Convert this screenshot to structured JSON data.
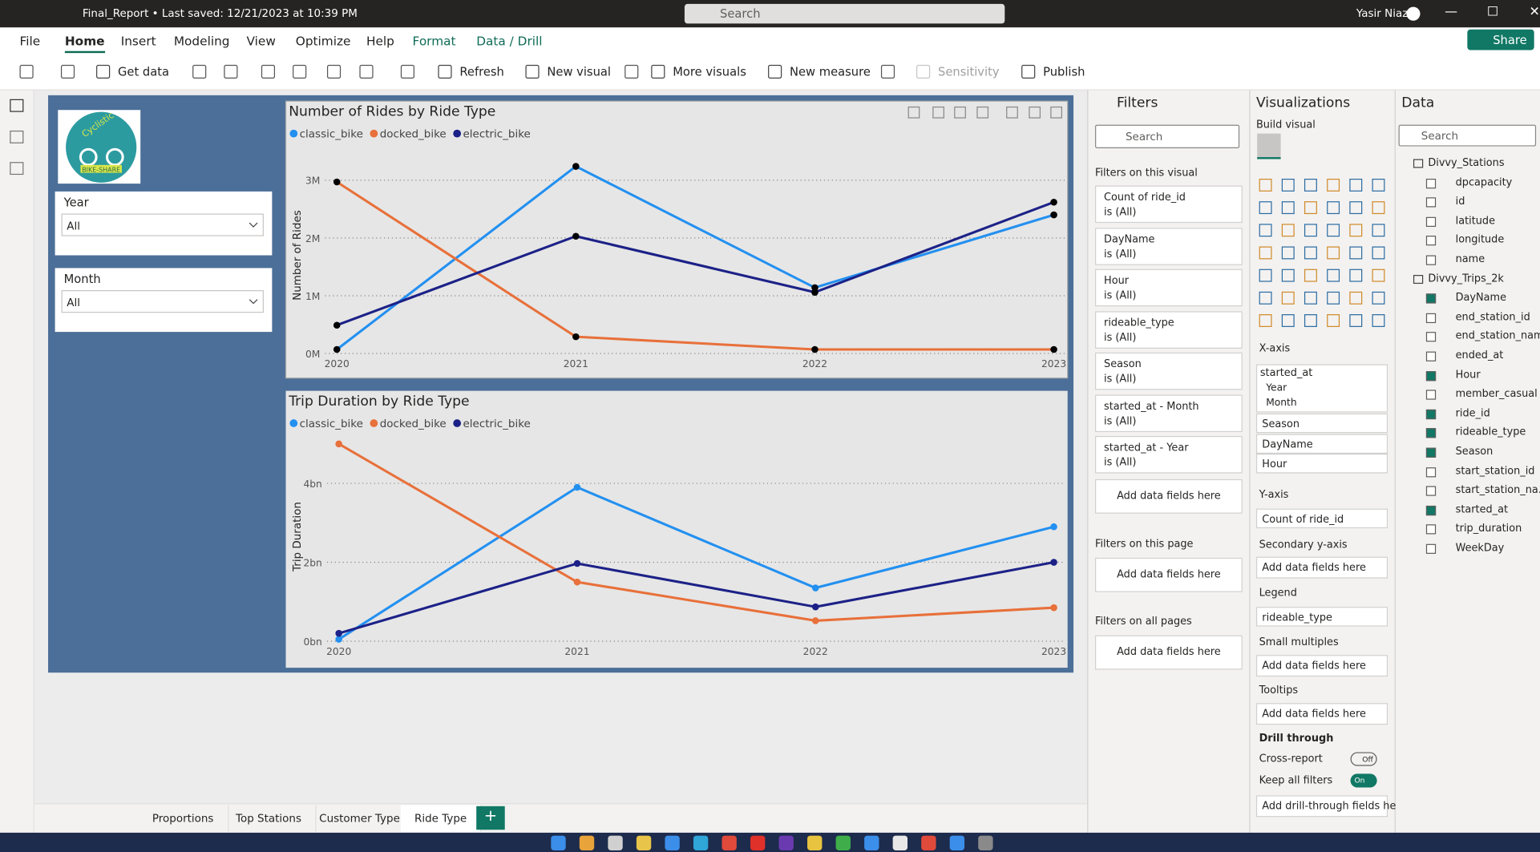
{
  "title_bar": {
    "file": "Final_Report • Last saved: 12/21/2023 at 10:39 PM",
    "search": "Search",
    "user": "Yasir Niaz"
  },
  "ribbon": {
    "tabs": [
      "File",
      "Home",
      "Insert",
      "Modeling",
      "View",
      "Optimize",
      "Help",
      "Format",
      "Data / Drill"
    ],
    "active_tab": 1,
    "share": "Share",
    "tools": [
      "Get data",
      "Refresh",
      "New visual",
      "More visuals",
      "New measure",
      "Sensitivity",
      "Publish"
    ]
  },
  "logo": {
    "name": "Cyclistic",
    "tag": "BIKE-SHARE"
  },
  "slicers": [
    {
      "title": "Year",
      "value": "All"
    },
    {
      "title": "Month",
      "value": "All"
    }
  ],
  "chart_data": [
    {
      "type": "line",
      "title": "Number of Rides by Ride Type",
      "y_label": "Number of Rides",
      "categories": [
        "2020",
        "2021",
        "2022",
        "2023"
      ],
      "series": [
        {
          "name": "classic_bike",
          "color": "#2390f0",
          "values": [
            70000,
            3240000,
            1140000,
            2400000
          ]
        },
        {
          "name": "docked_bike",
          "color": "#e8703a",
          "values": [
            2970000,
            290000,
            70000,
            70000
          ]
        },
        {
          "name": "electric_bike",
          "color": "#1c2187",
          "values": [
            490000,
            2030000,
            1060000,
            2620000
          ]
        }
      ],
      "marker_color": "#000000",
      "ylim": [
        0,
        3400000
      ],
      "yticks": [
        {
          "value": 0,
          "label": "0M"
        },
        {
          "value": 1000000,
          "label": "1M"
        },
        {
          "value": 2000000,
          "label": "2M"
        },
        {
          "value": 3000000,
          "label": "3M"
        }
      ],
      "grid": true
    },
    {
      "type": "line",
      "title": "Trip Duration by Ride Type",
      "y_label": "Trip Duration",
      "categories": [
        "2020",
        "2021",
        "2022",
        "2023"
      ],
      "series": [
        {
          "name": "classic_bike",
          "color": "#2390f0",
          "values": [
            50000000,
            3900000000,
            1350000000,
            2900000000
          ]
        },
        {
          "name": "docked_bike",
          "color": "#e8703a",
          "values": [
            5000000000,
            1500000000,
            520000000,
            850000000
          ]
        },
        {
          "name": "electric_bike",
          "color": "#1c2187",
          "values": [
            200000000,
            1970000000,
            870000000,
            2000000000
          ]
        }
      ],
      "ylim": [
        0,
        5300000000
      ],
      "yticks": [
        {
          "value": 0,
          "label": "0bn"
        },
        {
          "value": 2000000000,
          "label": "2bn"
        },
        {
          "value": 4000000000,
          "label": "4bn"
        }
      ],
      "grid": true
    }
  ],
  "filters": {
    "title": "Filters",
    "search": "Search",
    "on_visual": "Filters on this visual",
    "cards": [
      {
        "field": "Count of ride_id",
        "state": "is (All)"
      },
      {
        "field": "DayName",
        "state": "is (All)"
      },
      {
        "field": "Hour",
        "state": "is (All)"
      },
      {
        "field": "rideable_type",
        "state": "is (All)"
      },
      {
        "field": "Season",
        "state": "is (All)"
      },
      {
        "field": "started_at - Month",
        "state": "is (All)"
      },
      {
        "field": "started_at - Year",
        "state": "is (All)"
      }
    ],
    "add": "Add data fields here",
    "on_page": "Filters on this page",
    "on_all": "Filters on all pages"
  },
  "visualizations": {
    "title": "Visualizations",
    "build": "Build visual",
    "x_axis": "X-axis",
    "x_fields": [
      "started_at",
      "Year",
      "Month",
      "Season",
      "DayName",
      "Hour"
    ],
    "y_axis": "Y-axis",
    "y_field": "Count of ride_id",
    "secondary": "Secondary y-axis",
    "legend": "Legend",
    "legend_field": "rideable_type",
    "small": "Small multiples",
    "tooltips": "Tooltips",
    "drill": "Drill through",
    "cross": "Cross-report",
    "cross_state": "Off",
    "keep": "Keep all filters",
    "keep_state": "On",
    "add": "Add data fields here",
    "add_drill": "Add drill-through fields here"
  },
  "data_pane": {
    "title": "Data",
    "search": "Search",
    "tables": [
      {
        "name": "Divvy_Stations",
        "fields": [
          {
            "name": "dpcapacity",
            "checked": false
          },
          {
            "name": "id",
            "checked": false
          },
          {
            "name": "latitude",
            "checked": false
          },
          {
            "name": "longitude",
            "checked": false
          },
          {
            "name": "name",
            "checked": false
          }
        ]
      },
      {
        "name": "Divvy_Trips_2k",
        "fields": [
          {
            "name": "DayName",
            "checked": true
          },
          {
            "name": "end_station_id",
            "checked": false
          },
          {
            "name": "end_station_name",
            "checked": false
          },
          {
            "name": "ended_at",
            "checked": false
          },
          {
            "name": "Hour",
            "checked": true
          },
          {
            "name": "member_casual",
            "checked": false
          },
          {
            "name": "ride_id",
            "checked": true
          },
          {
            "name": "rideable_type",
            "checked": true
          },
          {
            "name": "Season",
            "checked": true
          },
          {
            "name": "start_station_id",
            "checked": false
          },
          {
            "name": "start_station_na...",
            "checked": false
          },
          {
            "name": "started_at",
            "checked": true
          },
          {
            "name": "trip_duration",
            "checked": false
          },
          {
            "name": "WeekDay",
            "checked": false
          }
        ]
      }
    ]
  },
  "pages": [
    "Proportions",
    "Top Stations",
    "Customer Type",
    "Ride Type"
  ],
  "active_page": 3
}
